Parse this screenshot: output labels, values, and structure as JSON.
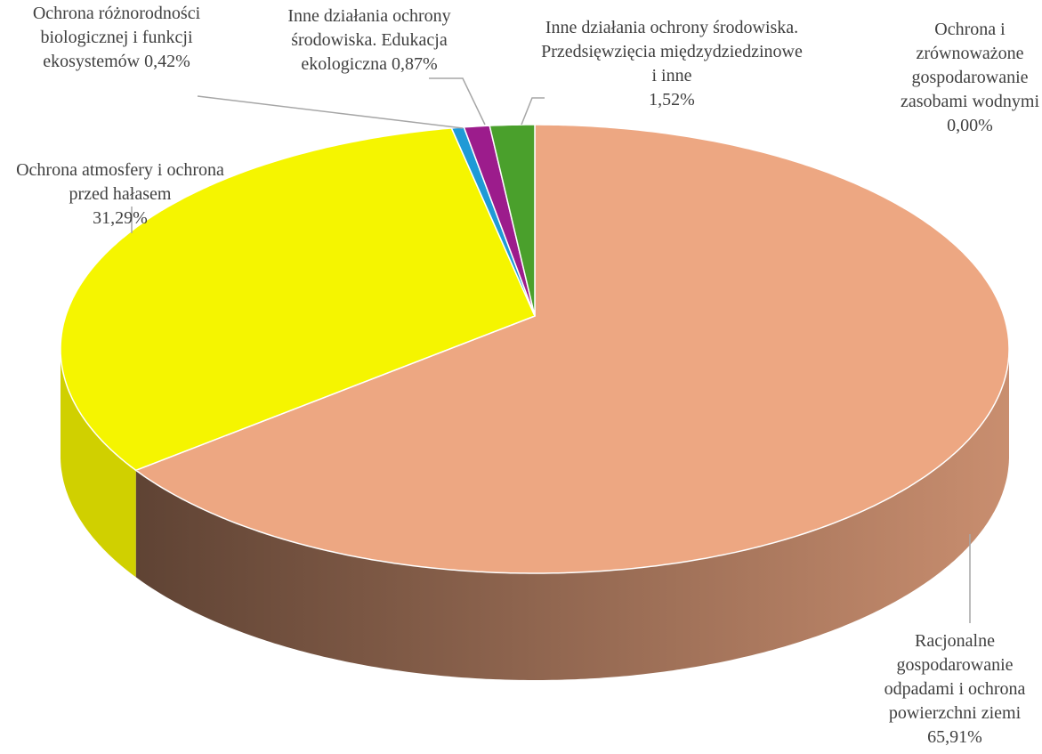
{
  "chart_data": {
    "type": "pie",
    "categories": [
      "Ochrona i zrównoważone gospodarowanie zasobami wodnymi",
      "Racjonalne gospodarowanie odpadami i ochrona powierzchni ziemi",
      "Ochrona atmosfery i ochrona przed hałasem",
      "Ochrona różnorodności biologicznej i funkcji ekosystemów",
      "Inne działania ochrony środowiska. Edukacja ekologiczna",
      "Inne działania ochrony środowiska. Przedsięwzięcia międzydziedzinowe i inne"
    ],
    "values": [
      0,
      65.91,
      31.29,
      0.42,
      0.87,
      1.52
    ],
    "value_labels": [
      "0,00%",
      "65,91%",
      "31,29%",
      "0,42%",
      "0,87%",
      "1,52%"
    ],
    "colors": [
      "#4472c4",
      "#eda782",
      "#f5f500",
      "#1f9ad6",
      "#9c1c8c",
      "#4aa02c"
    ]
  }
}
